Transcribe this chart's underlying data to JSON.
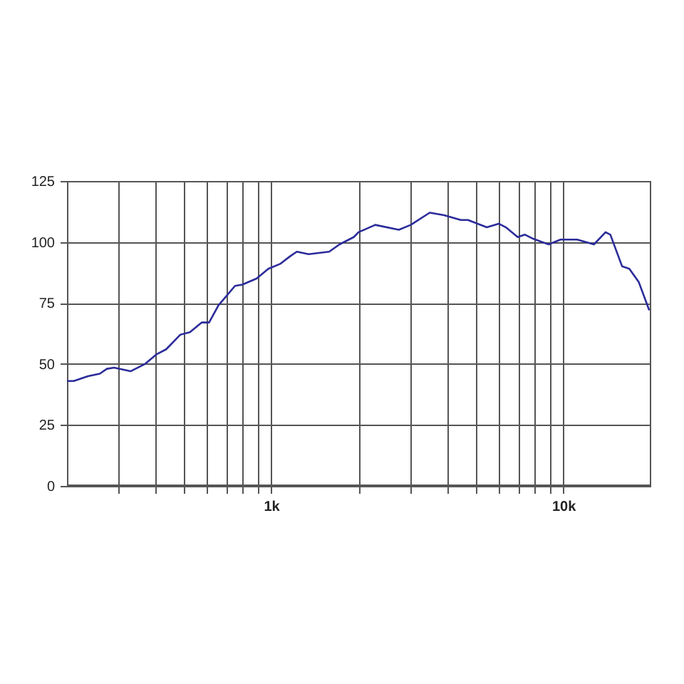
{
  "chart_data": {
    "type": "line",
    "log": "x",
    "grid": true,
    "marker": "none",
    "line_style": "solid",
    "xlim": [
      200,
      20000
    ],
    "xticks": [
      {
        "value": 300,
        "label": null
      },
      {
        "value": 400,
        "label": null
      },
      {
        "value": 500,
        "label": null
      },
      {
        "value": 600,
        "label": null
      },
      {
        "value": 700,
        "label": null
      },
      {
        "value": 800,
        "label": null
      },
      {
        "value": 900,
        "label": null
      },
      {
        "value": 1000,
        "label": "1k"
      },
      {
        "value": 2000,
        "label": null
      },
      {
        "value": 3000,
        "label": null
      },
      {
        "value": 4000,
        "label": null
      },
      {
        "value": 5000,
        "label": null
      },
      {
        "value": 6000,
        "label": null
      },
      {
        "value": 7000,
        "label": null
      },
      {
        "value": 8000,
        "label": null
      },
      {
        "value": 9000,
        "label": null
      },
      {
        "value": 10000,
        "label": "10k"
      }
    ],
    "ylim": [
      0,
      125
    ],
    "yticks": [
      0,
      25,
      50,
      75,
      100,
      125
    ],
    "x": [
      200,
      211,
      236,
      259,
      274,
      290,
      330,
      370,
      406,
      437,
      489,
      527,
      579,
      613,
      660,
      752,
      796,
      891,
      978,
      1073,
      1157,
      1224,
      1344,
      1580,
      1714,
      1918,
      1991,
      2271,
      2736,
      3005,
      3490,
      3906,
      4456,
      4715,
      5474,
      6011,
      6360,
      6982,
      7390,
      7821,
      8916,
      9786,
      11160,
      12730,
      13960,
      14490,
      15900,
      16830,
      18140,
      19690
    ],
    "series": [
      {
        "color": "#2b2b9a",
        "values": [
          43,
          43,
          45,
          46,
          48,
          48.5,
          47,
          50,
          54,
          56,
          62,
          63,
          67,
          67,
          74,
          82,
          82.5,
          85,
          89,
          91,
          94,
          96,
          95,
          96,
          99,
          102,
          104,
          107,
          105,
          107,
          112,
          111,
          109,
          109,
          106,
          107.5,
          106,
          102,
          103,
          101.5,
          99,
          101,
          101,
          99,
          104,
          103,
          90,
          89,
          83.5,
          72
        ]
      }
    ]
  }
}
